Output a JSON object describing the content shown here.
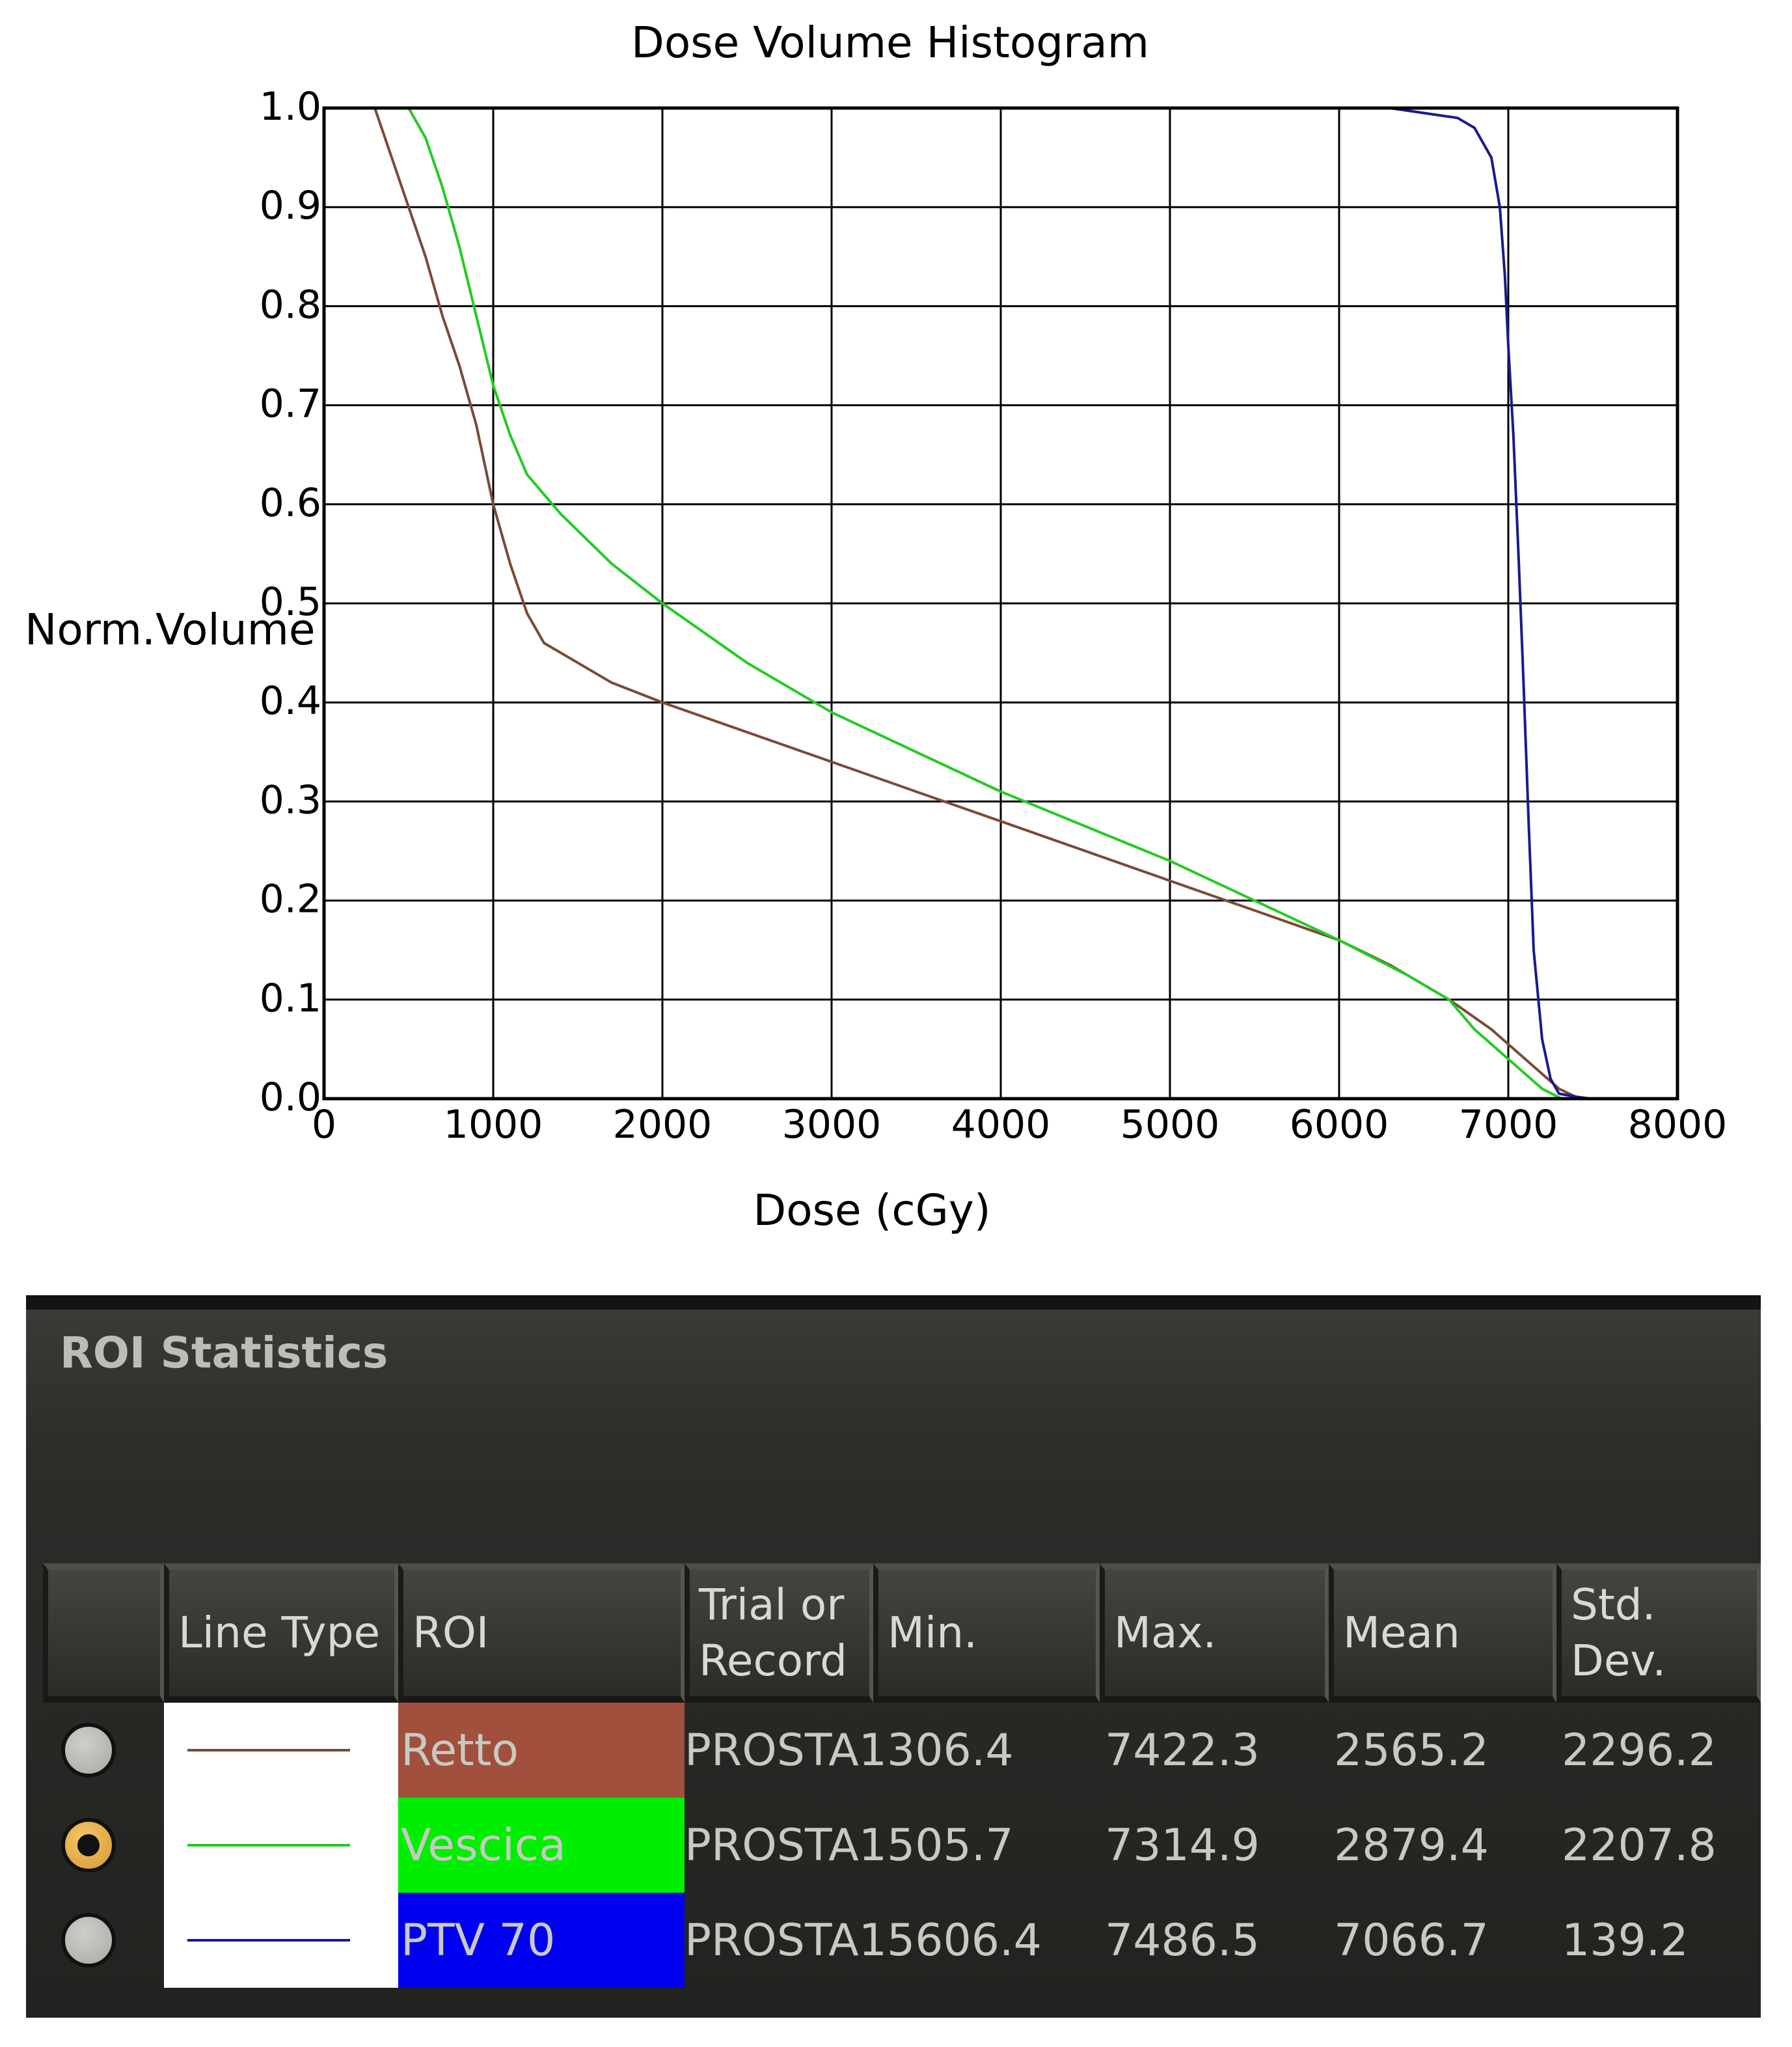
{
  "chart_data": {
    "type": "line",
    "title": "Dose Volume Histogram",
    "xlabel": "Dose (cGy)",
    "ylabel": "Norm.Volume",
    "xlim": [
      0,
      8000
    ],
    "ylim": [
      0,
      1.0
    ],
    "xticks": [
      "0",
      "1000",
      "2000",
      "3000",
      "4000",
      "5000",
      "6000",
      "7000",
      "8000"
    ],
    "yticks": [
      "0.0",
      "0.1",
      "0.2",
      "0.3",
      "0.4",
      "0.5",
      "0.6",
      "0.7",
      "0.8",
      "0.9",
      "1.0"
    ],
    "grid": true,
    "series": [
      {
        "name": "Retto",
        "color": "#7a4a36",
        "points": [
          [
            0,
            1.0
          ],
          [
            300,
            1.0
          ],
          [
            400,
            0.95
          ],
          [
            500,
            0.9
          ],
          [
            600,
            0.85
          ],
          [
            700,
            0.79
          ],
          [
            800,
            0.74
          ],
          [
            900,
            0.68
          ],
          [
            1000,
            0.6
          ],
          [
            1100,
            0.54
          ],
          [
            1200,
            0.49
          ],
          [
            1300,
            0.46
          ],
          [
            1500,
            0.44
          ],
          [
            1700,
            0.42
          ],
          [
            2000,
            0.4
          ],
          [
            2500,
            0.37
          ],
          [
            3000,
            0.34
          ],
          [
            3500,
            0.31
          ],
          [
            4000,
            0.28
          ],
          [
            4500,
            0.25
          ],
          [
            5000,
            0.22
          ],
          [
            5500,
            0.19
          ],
          [
            6000,
            0.16
          ],
          [
            6300,
            0.135
          ],
          [
            6650,
            0.1
          ],
          [
            6900,
            0.07
          ],
          [
            7100,
            0.04
          ],
          [
            7300,
            0.01
          ],
          [
            7422,
            0.0
          ]
        ]
      },
      {
        "name": "Vescica",
        "color": "#22cc22",
        "points": [
          [
            0,
            1.0
          ],
          [
            500,
            1.0
          ],
          [
            600,
            0.97
          ],
          [
            700,
            0.92
          ],
          [
            800,
            0.86
          ],
          [
            900,
            0.79
          ],
          [
            1000,
            0.72
          ],
          [
            1100,
            0.67
          ],
          [
            1200,
            0.63
          ],
          [
            1400,
            0.59
          ],
          [
            1700,
            0.54
          ],
          [
            2000,
            0.5
          ],
          [
            2500,
            0.44
          ],
          [
            3000,
            0.39
          ],
          [
            3500,
            0.35
          ],
          [
            4000,
            0.31
          ],
          [
            4500,
            0.275
          ],
          [
            5000,
            0.24
          ],
          [
            5500,
            0.2
          ],
          [
            6000,
            0.16
          ],
          [
            6400,
            0.125
          ],
          [
            6650,
            0.1
          ],
          [
            6800,
            0.07
          ],
          [
            7000,
            0.04
          ],
          [
            7200,
            0.01
          ],
          [
            7315,
            0.0
          ]
        ]
      },
      {
        "name": "PTV 70",
        "color": "#1a1a8c",
        "points": [
          [
            0,
            1.0
          ],
          [
            6300,
            1.0
          ],
          [
            6500,
            0.995
          ],
          [
            6700,
            0.99
          ],
          [
            6800,
            0.98
          ],
          [
            6900,
            0.95
          ],
          [
            6950,
            0.9
          ],
          [
            6980,
            0.83
          ],
          [
            7000,
            0.76
          ],
          [
            7030,
            0.67
          ],
          [
            7060,
            0.55
          ],
          [
            7090,
            0.42
          ],
          [
            7120,
            0.28
          ],
          [
            7150,
            0.15
          ],
          [
            7200,
            0.06
          ],
          [
            7250,
            0.02
          ],
          [
            7300,
            0.005
          ],
          [
            7400,
            0.002
          ],
          [
            7486,
            0.0
          ]
        ]
      }
    ]
  },
  "roi_panel": {
    "title": "ROI Statistics",
    "columns": {
      "select": "",
      "line_type": "Line Type",
      "roi": "ROI",
      "trial_or_record": "Trial or Record",
      "min": "Min.",
      "max": "Max.",
      "mean": "Mean",
      "std_dev": "Std. Dev."
    },
    "rows": [
      {
        "selected": false,
        "line_color": "#7a4a36",
        "roi": "Retto",
        "roi_color": "#a0503c",
        "trial": "PROSTA1",
        "min": "306.4",
        "max": "7422.3",
        "mean": "2565.2",
        "std_dev": "2296.2"
      },
      {
        "selected": true,
        "line_color": "#22cc22",
        "roi": "Vescica",
        "roi_color": "#00ee00",
        "trial": "PROSTA1",
        "min": "505.7",
        "max": "7314.9",
        "mean": "2879.4",
        "std_dev": "2207.8"
      },
      {
        "selected": false,
        "line_color": "#1a1a8c",
        "roi": "PTV 70",
        "roi_color": "#0000f0",
        "trial": "PROSTA1",
        "min": "5606.4",
        "max": "7486.5",
        "mean": "7066.7",
        "std_dev": "139.2"
      }
    ]
  }
}
